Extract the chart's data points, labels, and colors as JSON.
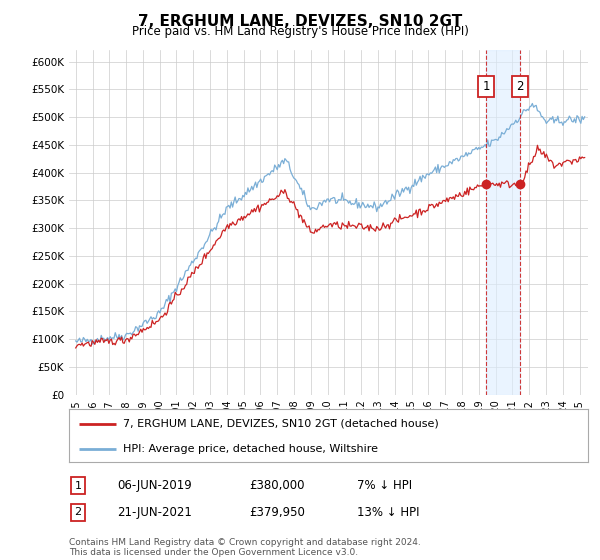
{
  "title": "7, ERGHUM LANE, DEVIZES, SN10 2GT",
  "subtitle": "Price paid vs. HM Land Registry's House Price Index (HPI)",
  "ylim": [
    0,
    620000
  ],
  "yticks": [
    0,
    50000,
    100000,
    150000,
    200000,
    250000,
    300000,
    350000,
    400000,
    450000,
    500000,
    550000,
    600000
  ],
  "ytick_labels": [
    "£0",
    "£50K",
    "£100K",
    "£150K",
    "£200K",
    "£250K",
    "£300K",
    "£350K",
    "£400K",
    "£450K",
    "£500K",
    "£550K",
    "£600K"
  ],
  "hpi_color": "#7aaed6",
  "price_color": "#cc2222",
  "annotation_bg": "#ddeeff",
  "sale1_date": "06-JUN-2019",
  "sale1_price": "£380,000",
  "sale1_pct": "7% ↓ HPI",
  "sale2_date": "21-JUN-2021",
  "sale2_price": "£379,950",
  "sale2_pct": "13% ↓ HPI",
  "legend_label_price": "7, ERGHUM LANE, DEVIZES, SN10 2GT (detached house)",
  "legend_label_hpi": "HPI: Average price, detached house, Wiltshire",
  "footer": "Contains HM Land Registry data © Crown copyright and database right 2024.\nThis data is licensed under the Open Government Licence v3.0.",
  "sale1_x": 2019.43,
  "sale2_x": 2021.47,
  "background_color": "#ffffff",
  "grid_color": "#cccccc",
  "xlim_left": 1994.6,
  "xlim_right": 2025.5
}
